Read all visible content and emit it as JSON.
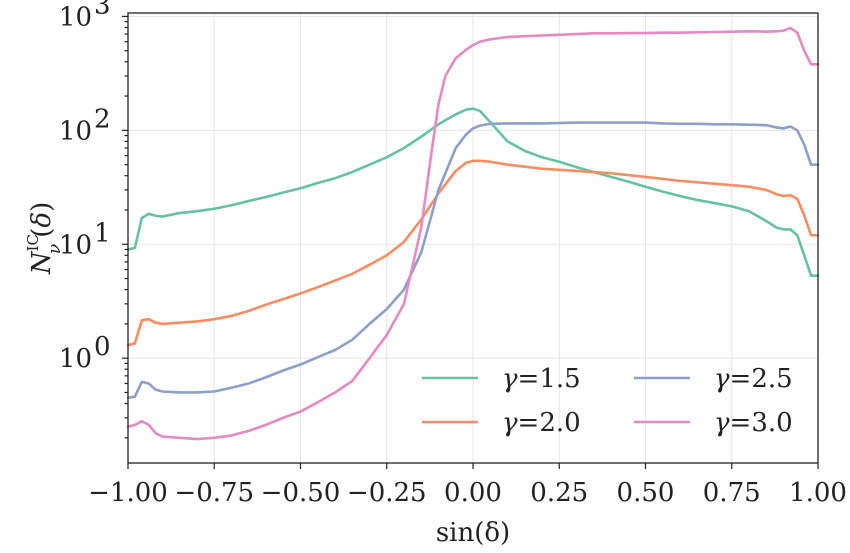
{
  "chart_data": {
    "type": "line",
    "xlabel": "sin(δ)",
    "ylabel": "N_ν^IC(δ)",
    "xlim": [
      -1.0,
      1.0
    ],
    "ylim_log10": [
      -0.92,
      3.03
    ],
    "yscale": "log",
    "grid": true,
    "legend_placement": "lower-right",
    "legend_columns": 2,
    "x_ticks": [
      "−1.00",
      "−0.75",
      "−0.50",
      "−0.25",
      "0.00",
      "0.25",
      "0.50",
      "0.75",
      "1.00"
    ],
    "x_tick_values": [
      -1.0,
      -0.75,
      -0.5,
      -0.25,
      0.0,
      0.25,
      0.5,
      0.75,
      1.0
    ],
    "y_ticks": [
      {
        "value": 1,
        "base": "10",
        "exp": "0"
      },
      {
        "value": 10,
        "base": "10",
        "exp": "1"
      },
      {
        "value": 100,
        "base": "10",
        "exp": "2"
      },
      {
        "value": 1000,
        "base": "10",
        "exp": "3"
      }
    ],
    "series": [
      {
        "name": "γ=1.5",
        "color": "#66c2a5",
        "x": [
          -1.0,
          -0.98,
          -0.96,
          -0.94,
          -0.92,
          -0.9,
          -0.85,
          -0.8,
          -0.75,
          -0.7,
          -0.65,
          -0.6,
          -0.55,
          -0.5,
          -0.45,
          -0.4,
          -0.35,
          -0.3,
          -0.25,
          -0.2,
          -0.15,
          -0.1,
          -0.05,
          -0.02,
          0.0,
          0.02,
          0.05,
          0.1,
          0.15,
          0.2,
          0.25,
          0.3,
          0.35,
          0.4,
          0.45,
          0.5,
          0.55,
          0.6,
          0.65,
          0.7,
          0.75,
          0.8,
          0.85,
          0.88,
          0.9,
          0.92,
          0.94,
          0.96,
          0.98,
          1.0
        ],
        "y": [
          9.0,
          9.3,
          17.0,
          18.5,
          17.8,
          17.5,
          18.8,
          19.5,
          20.5,
          22.0,
          24.0,
          26.0,
          28.5,
          31.0,
          34.5,
          38.0,
          43.0,
          50.0,
          58.0,
          70.0,
          88.0,
          113.0,
          138.0,
          152.0,
          155.0,
          148.0,
          118.0,
          80.0,
          66.0,
          58.0,
          53.0,
          47.5,
          43.0,
          39.0,
          35.5,
          32.0,
          29.0,
          26.5,
          24.5,
          23.0,
          21.5,
          19.5,
          16.0,
          14.0,
          13.5,
          13.5,
          12.0,
          8.0,
          5.3,
          5.3
        ]
      },
      {
        "name": "γ=2.0",
        "color": "#fc8d62",
        "x": [
          -1.0,
          -0.98,
          -0.96,
          -0.94,
          -0.92,
          -0.9,
          -0.85,
          -0.8,
          -0.75,
          -0.7,
          -0.65,
          -0.6,
          -0.55,
          -0.5,
          -0.45,
          -0.4,
          -0.35,
          -0.3,
          -0.25,
          -0.2,
          -0.15,
          -0.1,
          -0.05,
          -0.02,
          0.0,
          0.02,
          0.05,
          0.1,
          0.15,
          0.2,
          0.25,
          0.3,
          0.35,
          0.4,
          0.45,
          0.5,
          0.55,
          0.6,
          0.65,
          0.7,
          0.75,
          0.8,
          0.85,
          0.88,
          0.9,
          0.92,
          0.94,
          0.96,
          0.98,
          1.0
        ],
        "y": [
          1.3,
          1.35,
          2.15,
          2.2,
          2.05,
          2.0,
          2.05,
          2.1,
          2.2,
          2.35,
          2.6,
          2.95,
          3.3,
          3.7,
          4.2,
          4.8,
          5.5,
          6.6,
          8.0,
          10.5,
          16.5,
          28.0,
          44.0,
          52.0,
          54.0,
          54.0,
          53.0,
          50.0,
          48.0,
          46.0,
          45.0,
          44.0,
          43.0,
          42.0,
          40.5,
          39.0,
          37.5,
          36.0,
          35.0,
          34.0,
          33.0,
          32.0,
          30.0,
          27.5,
          26.5,
          27.0,
          25.0,
          18.0,
          12.0,
          12.0
        ]
      },
      {
        "name": "γ=2.5",
        "color": "#8da0cb",
        "x": [
          -1.0,
          -0.98,
          -0.96,
          -0.94,
          -0.92,
          -0.9,
          -0.85,
          -0.8,
          -0.75,
          -0.7,
          -0.65,
          -0.6,
          -0.55,
          -0.5,
          -0.45,
          -0.4,
          -0.35,
          -0.3,
          -0.25,
          -0.2,
          -0.15,
          -0.1,
          -0.05,
          -0.02,
          0.0,
          0.02,
          0.05,
          0.1,
          0.15,
          0.2,
          0.25,
          0.3,
          0.35,
          0.4,
          0.45,
          0.5,
          0.55,
          0.6,
          0.65,
          0.7,
          0.75,
          0.8,
          0.85,
          0.88,
          0.9,
          0.92,
          0.94,
          0.96,
          0.98,
          1.0
        ],
        "y": [
          0.45,
          0.46,
          0.62,
          0.6,
          0.53,
          0.51,
          0.5,
          0.5,
          0.51,
          0.55,
          0.6,
          0.68,
          0.78,
          0.88,
          1.02,
          1.18,
          1.45,
          2.0,
          2.7,
          4.0,
          8.5,
          30.0,
          70.0,
          92.0,
          104.0,
          110.0,
          114.0,
          115.0,
          115.0,
          115.0,
          116.0,
          117.0,
          117.0,
          117.0,
          117.0,
          117.0,
          115.0,
          114.0,
          114.0,
          113.0,
          113.0,
          112.0,
          111.0,
          106.0,
          104.0,
          108.0,
          100.0,
          75.0,
          50.0,
          50.0
        ]
      },
      {
        "name": "γ=3.0",
        "color": "#e78ac3",
        "x": [
          -1.0,
          -0.98,
          -0.96,
          -0.94,
          -0.92,
          -0.9,
          -0.85,
          -0.8,
          -0.75,
          -0.7,
          -0.65,
          -0.6,
          -0.55,
          -0.5,
          -0.45,
          -0.4,
          -0.35,
          -0.3,
          -0.25,
          -0.2,
          -0.15,
          -0.12,
          -0.1,
          -0.08,
          -0.05,
          -0.02,
          0.0,
          0.02,
          0.05,
          0.1,
          0.15,
          0.2,
          0.25,
          0.3,
          0.35,
          0.4,
          0.45,
          0.5,
          0.55,
          0.6,
          0.65,
          0.7,
          0.75,
          0.8,
          0.85,
          0.88,
          0.9,
          0.92,
          0.94,
          0.96,
          0.98,
          1.0
        ],
        "y": [
          0.25,
          0.26,
          0.28,
          0.26,
          0.22,
          0.205,
          0.2,
          0.195,
          0.2,
          0.21,
          0.23,
          0.26,
          0.3,
          0.34,
          0.41,
          0.5,
          0.63,
          1.0,
          1.6,
          3.0,
          14.0,
          65.0,
          170.0,
          300.0,
          430.0,
          510.0,
          560.0,
          600.0,
          630.0,
          660.0,
          670.0,
          680.0,
          690.0,
          700.0,
          710.0,
          710.0,
          715.0,
          715.0,
          720.0,
          720.0,
          725.0,
          730.0,
          735.0,
          740.0,
          735.0,
          740.0,
          750.0,
          790.0,
          720.0,
          500.0,
          380.0,
          380.0
        ]
      }
    ]
  }
}
